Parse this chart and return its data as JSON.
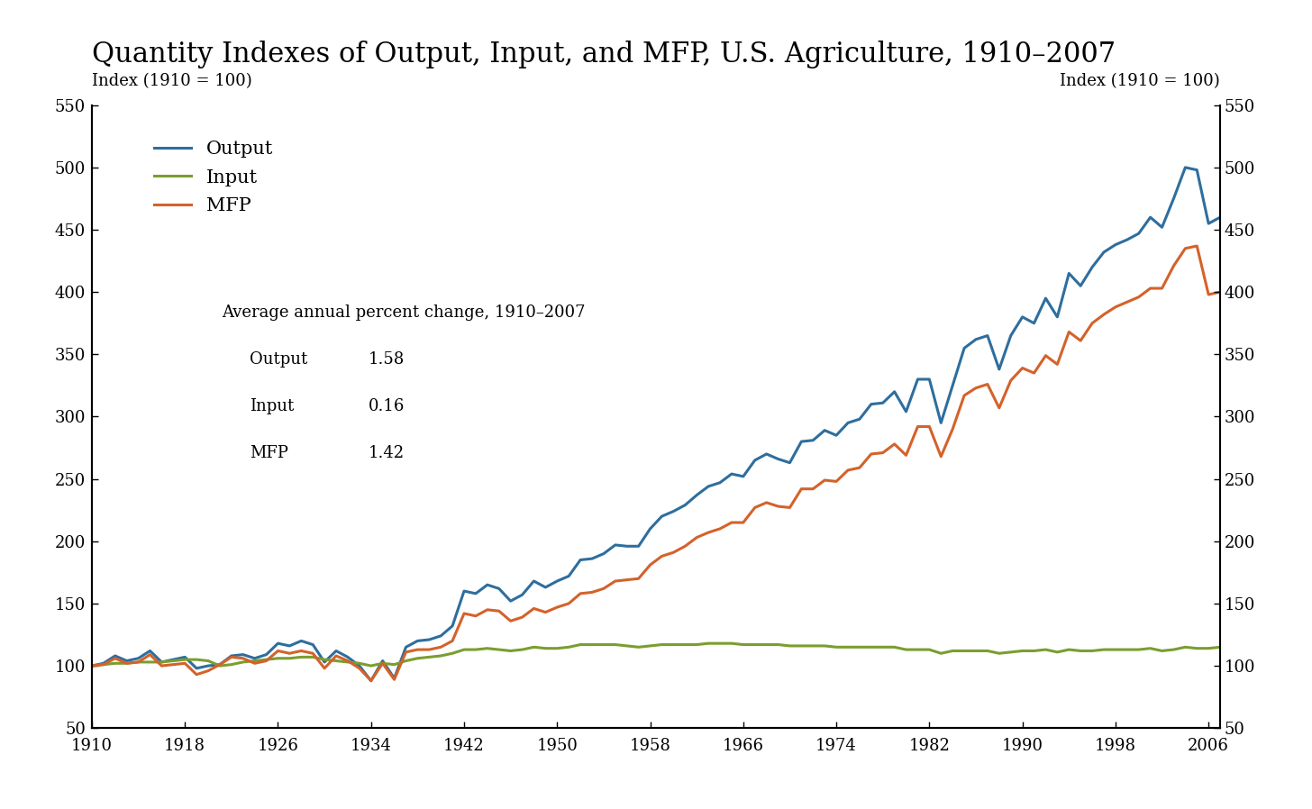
{
  "title": "Quantity Indexes of Output, Input, and MFP, U.S. Agriculture, 1910–2007",
  "ylabel_left": "Index (1910 = 100)",
  "ylabel_right": "Index (1910 = 100)",
  "ylim": [
    50,
    550
  ],
  "yticks": [
    50,
    100,
    150,
    200,
    250,
    300,
    350,
    400,
    450,
    500,
    550
  ],
  "xlim": [
    1910,
    2007
  ],
  "xticks": [
    1910,
    1918,
    1926,
    1934,
    1942,
    1950,
    1958,
    1966,
    1974,
    1982,
    1990,
    1998,
    2006
  ],
  "output_color": "#2e6e9e",
  "input_color": "#7a9e2e",
  "mfp_color": "#d4622a",
  "line_width": 2.2,
  "legend_labels": [
    "Output",
    "Input",
    "MFP"
  ],
  "annotation_title": "Average annual percent change, 1910–2007",
  "annotation_items": [
    [
      "Output",
      "1.58"
    ],
    [
      "Input",
      "0.16"
    ],
    [
      "MFP",
      "1.42"
    ]
  ],
  "title_fontsize": 22,
  "axis_label_fontsize": 13,
  "tick_fontsize": 13,
  "legend_fontsize": 15,
  "annotation_fontsize": 13,
  "background_color": "#ffffff",
  "years": [
    1910,
    1911,
    1912,
    1913,
    1914,
    1915,
    1916,
    1917,
    1918,
    1919,
    1920,
    1921,
    1922,
    1923,
    1924,
    1925,
    1926,
    1927,
    1928,
    1929,
    1930,
    1931,
    1932,
    1933,
    1934,
    1935,
    1936,
    1937,
    1938,
    1939,
    1940,
    1941,
    1942,
    1943,
    1944,
    1945,
    1946,
    1947,
    1948,
    1949,
    1950,
    1951,
    1952,
    1953,
    1954,
    1955,
    1956,
    1957,
    1958,
    1959,
    1960,
    1961,
    1962,
    1963,
    1964,
    1965,
    1966,
    1967,
    1968,
    1969,
    1970,
    1971,
    1972,
    1973,
    1974,
    1975,
    1976,
    1977,
    1978,
    1979,
    1980,
    1981,
    1982,
    1983,
    1984,
    1985,
    1986,
    1987,
    1988,
    1989,
    1990,
    1991,
    1992,
    1993,
    1994,
    1995,
    1996,
    1997,
    1998,
    1999,
    2000,
    2001,
    2002,
    2003,
    2004,
    2005,
    2006,
    2007
  ],
  "output": [
    100,
    102,
    108,
    104,
    106,
    112,
    103,
    105,
    107,
    98,
    100,
    101,
    108,
    109,
    106,
    109,
    118,
    116,
    120,
    117,
    103,
    112,
    107,
    100,
    88,
    104,
    90,
    115,
    120,
    121,
    124,
    132,
    160,
    158,
    165,
    162,
    152,
    157,
    168,
    163,
    168,
    172,
    185,
    186,
    190,
    197,
    196,
    196,
    210,
    220,
    224,
    229,
    237,
    244,
    247,
    254,
    252,
    265,
    270,
    266,
    263,
    280,
    281,
    289,
    285,
    295,
    298,
    310,
    311,
    320,
    304,
    330,
    330,
    295,
    325,
    355,
    362,
    365,
    338,
    365,
    380,
    375,
    395,
    380,
    415,
    405,
    420,
    432,
    438,
    442,
    447,
    460,
    452,
    475,
    500,
    498,
    455,
    460
  ],
  "input": [
    100,
    101,
    102,
    102,
    103,
    103,
    103,
    104,
    105,
    105,
    104,
    100,
    101,
    103,
    104,
    105,
    106,
    106,
    107,
    107,
    105,
    104,
    103,
    102,
    100,
    102,
    101,
    104,
    106,
    107,
    108,
    110,
    113,
    113,
    114,
    113,
    112,
    113,
    115,
    114,
    114,
    115,
    117,
    117,
    117,
    117,
    116,
    115,
    116,
    117,
    117,
    117,
    117,
    118,
    118,
    118,
    117,
    117,
    117,
    117,
    116,
    116,
    116,
    116,
    115,
    115,
    115,
    115,
    115,
    115,
    113,
    113,
    113,
    110,
    112,
    112,
    112,
    112,
    110,
    111,
    112,
    112,
    113,
    111,
    113,
    112,
    112,
    113,
    113,
    113,
    113,
    114,
    112,
    113,
    115,
    114,
    114,
    115
  ],
  "mfp": [
    100,
    101,
    106,
    102,
    103,
    109,
    100,
    101,
    102,
    93,
    96,
    101,
    107,
    106,
    102,
    104,
    112,
    110,
    112,
    110,
    98,
    108,
    104,
    98,
    88,
    102,
    89,
    111,
    113,
    113,
    115,
    120,
    142,
    140,
    145,
    144,
    136,
    139,
    146,
    143,
    147,
    150,
    158,
    159,
    162,
    168,
    169,
    170,
    181,
    188,
    191,
    196,
    203,
    207,
    210,
    215,
    215,
    227,
    231,
    228,
    227,
    242,
    242,
    249,
    248,
    257,
    259,
    270,
    271,
    278,
    269,
    292,
    292,
    268,
    290,
    317,
    323,
    326,
    307,
    329,
    339,
    335,
    349,
    342,
    368,
    361,
    375,
    382,
    388,
    392,
    396,
    403,
    403,
    421,
    435,
    437,
    398,
    400
  ]
}
